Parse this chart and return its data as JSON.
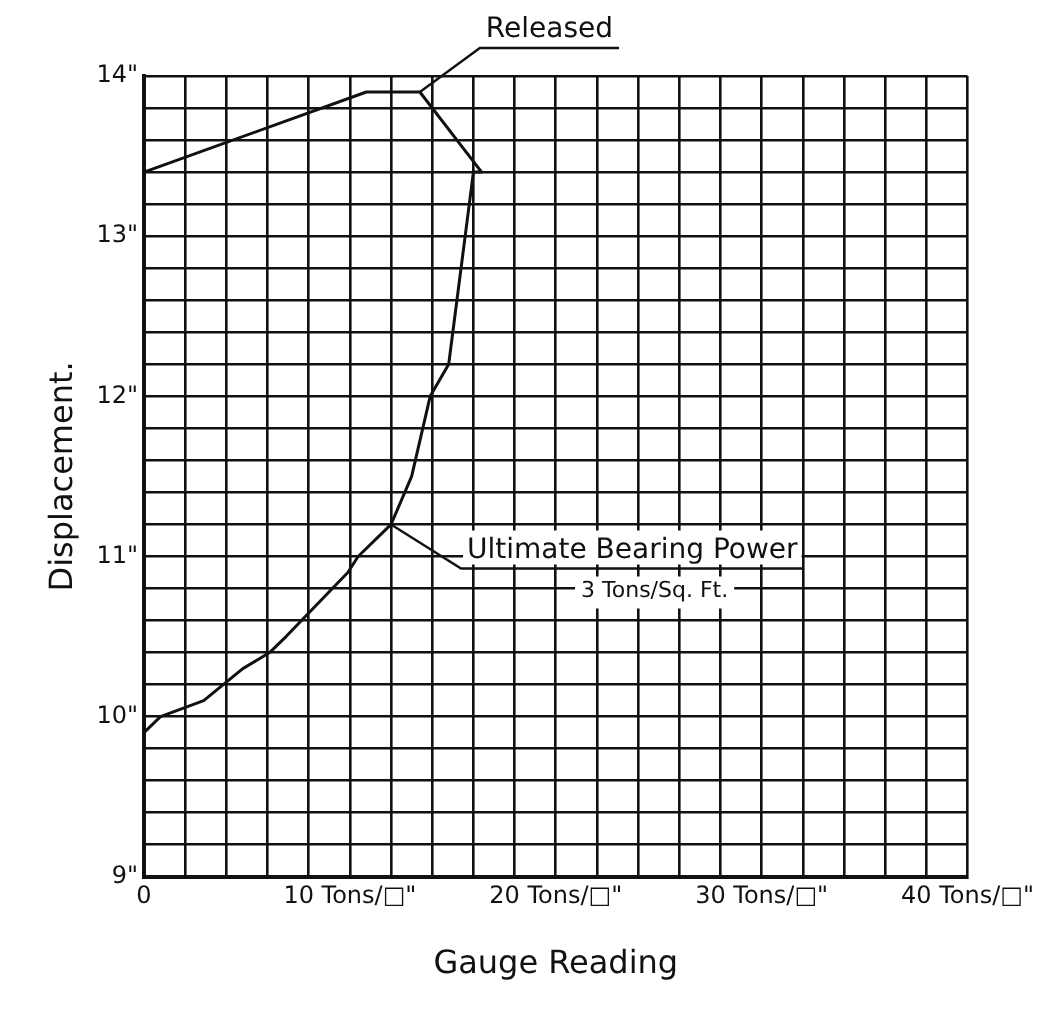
{
  "chart_data": {
    "type": "line",
    "xlabel": "Gauge Reading",
    "ylabel": "Displacement.",
    "x": [
      0,
      0.8,
      2.9,
      4.8,
      6.1,
      6.9,
      9.9,
      10.4,
      12.0,
      13.0,
      13.9,
      14.8,
      16.0,
      16.4,
      13.4,
      10.8,
      0
    ],
    "series": [
      {
        "color": "#111111",
        "values": [
          9.9,
          10.0,
          10.1,
          10.3,
          10.4,
          10.5,
          10.9,
          11.0,
          11.2,
          11.5,
          12.0,
          12.2,
          13.4,
          13.4,
          13.9,
          13.9,
          13.4
        ]
      }
    ],
    "xlim": [
      0,
      40
    ],
    "ylim": [
      9,
      14
    ],
    "xticks": [
      {
        "value": 0,
        "label": "0"
      },
      {
        "value": 2,
        "label": null
      },
      {
        "value": 4,
        "label": null
      },
      {
        "value": 6,
        "label": null
      },
      {
        "value": 8,
        "label": null
      },
      {
        "value": 10,
        "label": "10 Tons/□\""
      },
      {
        "value": 12,
        "label": null
      },
      {
        "value": 14,
        "label": null
      },
      {
        "value": 16,
        "label": null
      },
      {
        "value": 18,
        "label": null
      },
      {
        "value": 20,
        "label": "20 Tons/□\""
      },
      {
        "value": 22,
        "label": null
      },
      {
        "value": 24,
        "label": null
      },
      {
        "value": 26,
        "label": null
      },
      {
        "value": 28,
        "label": null
      },
      {
        "value": 30,
        "label": "30 Tons/□\""
      },
      {
        "value": 32,
        "label": null
      },
      {
        "value": 34,
        "label": null
      },
      {
        "value": 36,
        "label": null
      },
      {
        "value": 38,
        "label": null
      },
      {
        "value": 40,
        "label": "40 Tons/□\""
      }
    ],
    "yticks": [
      {
        "value": 9,
        "label": "9\""
      },
      {
        "value": 9.2,
        "label": null
      },
      {
        "value": 9.4,
        "label": null
      },
      {
        "value": 9.6,
        "label": null
      },
      {
        "value": 9.8,
        "label": null
      },
      {
        "value": 10,
        "label": "10\""
      },
      {
        "value": 10.2,
        "label": null
      },
      {
        "value": 10.4,
        "label": null
      },
      {
        "value": 10.6,
        "label": null
      },
      {
        "value": 10.8,
        "label": null
      },
      {
        "value": 11,
        "label": "11\""
      },
      {
        "value": 11.2,
        "label": null
      },
      {
        "value": 11.4,
        "label": null
      },
      {
        "value": 11.6,
        "label": null
      },
      {
        "value": 11.8,
        "label": null
      },
      {
        "value": 12,
        "label": "12\""
      },
      {
        "value": 12.2,
        "label": null
      },
      {
        "value": 12.4,
        "label": null
      },
      {
        "value": 12.6,
        "label": null
      },
      {
        "value": 12.8,
        "label": null
      },
      {
        "value": 13,
        "label": "13\""
      },
      {
        "value": 13.2,
        "label": null
      },
      {
        "value": 13.4,
        "label": null
      },
      {
        "value": 13.6,
        "label": null
      },
      {
        "value": 13.8,
        "label": null
      },
      {
        "value": 14,
        "label": "14\""
      }
    ],
    "grid": true,
    "marker": "none",
    "line_style": "solid",
    "legend": false,
    "annotations": [
      {
        "text": "Released",
        "x": 13.4,
        "y": 13.9
      },
      {
        "text": "Ultimate Bearing Power",
        "x": 12.0,
        "y": 11.2
      },
      "3 Tons/Sq. Ft."
    ]
  }
}
